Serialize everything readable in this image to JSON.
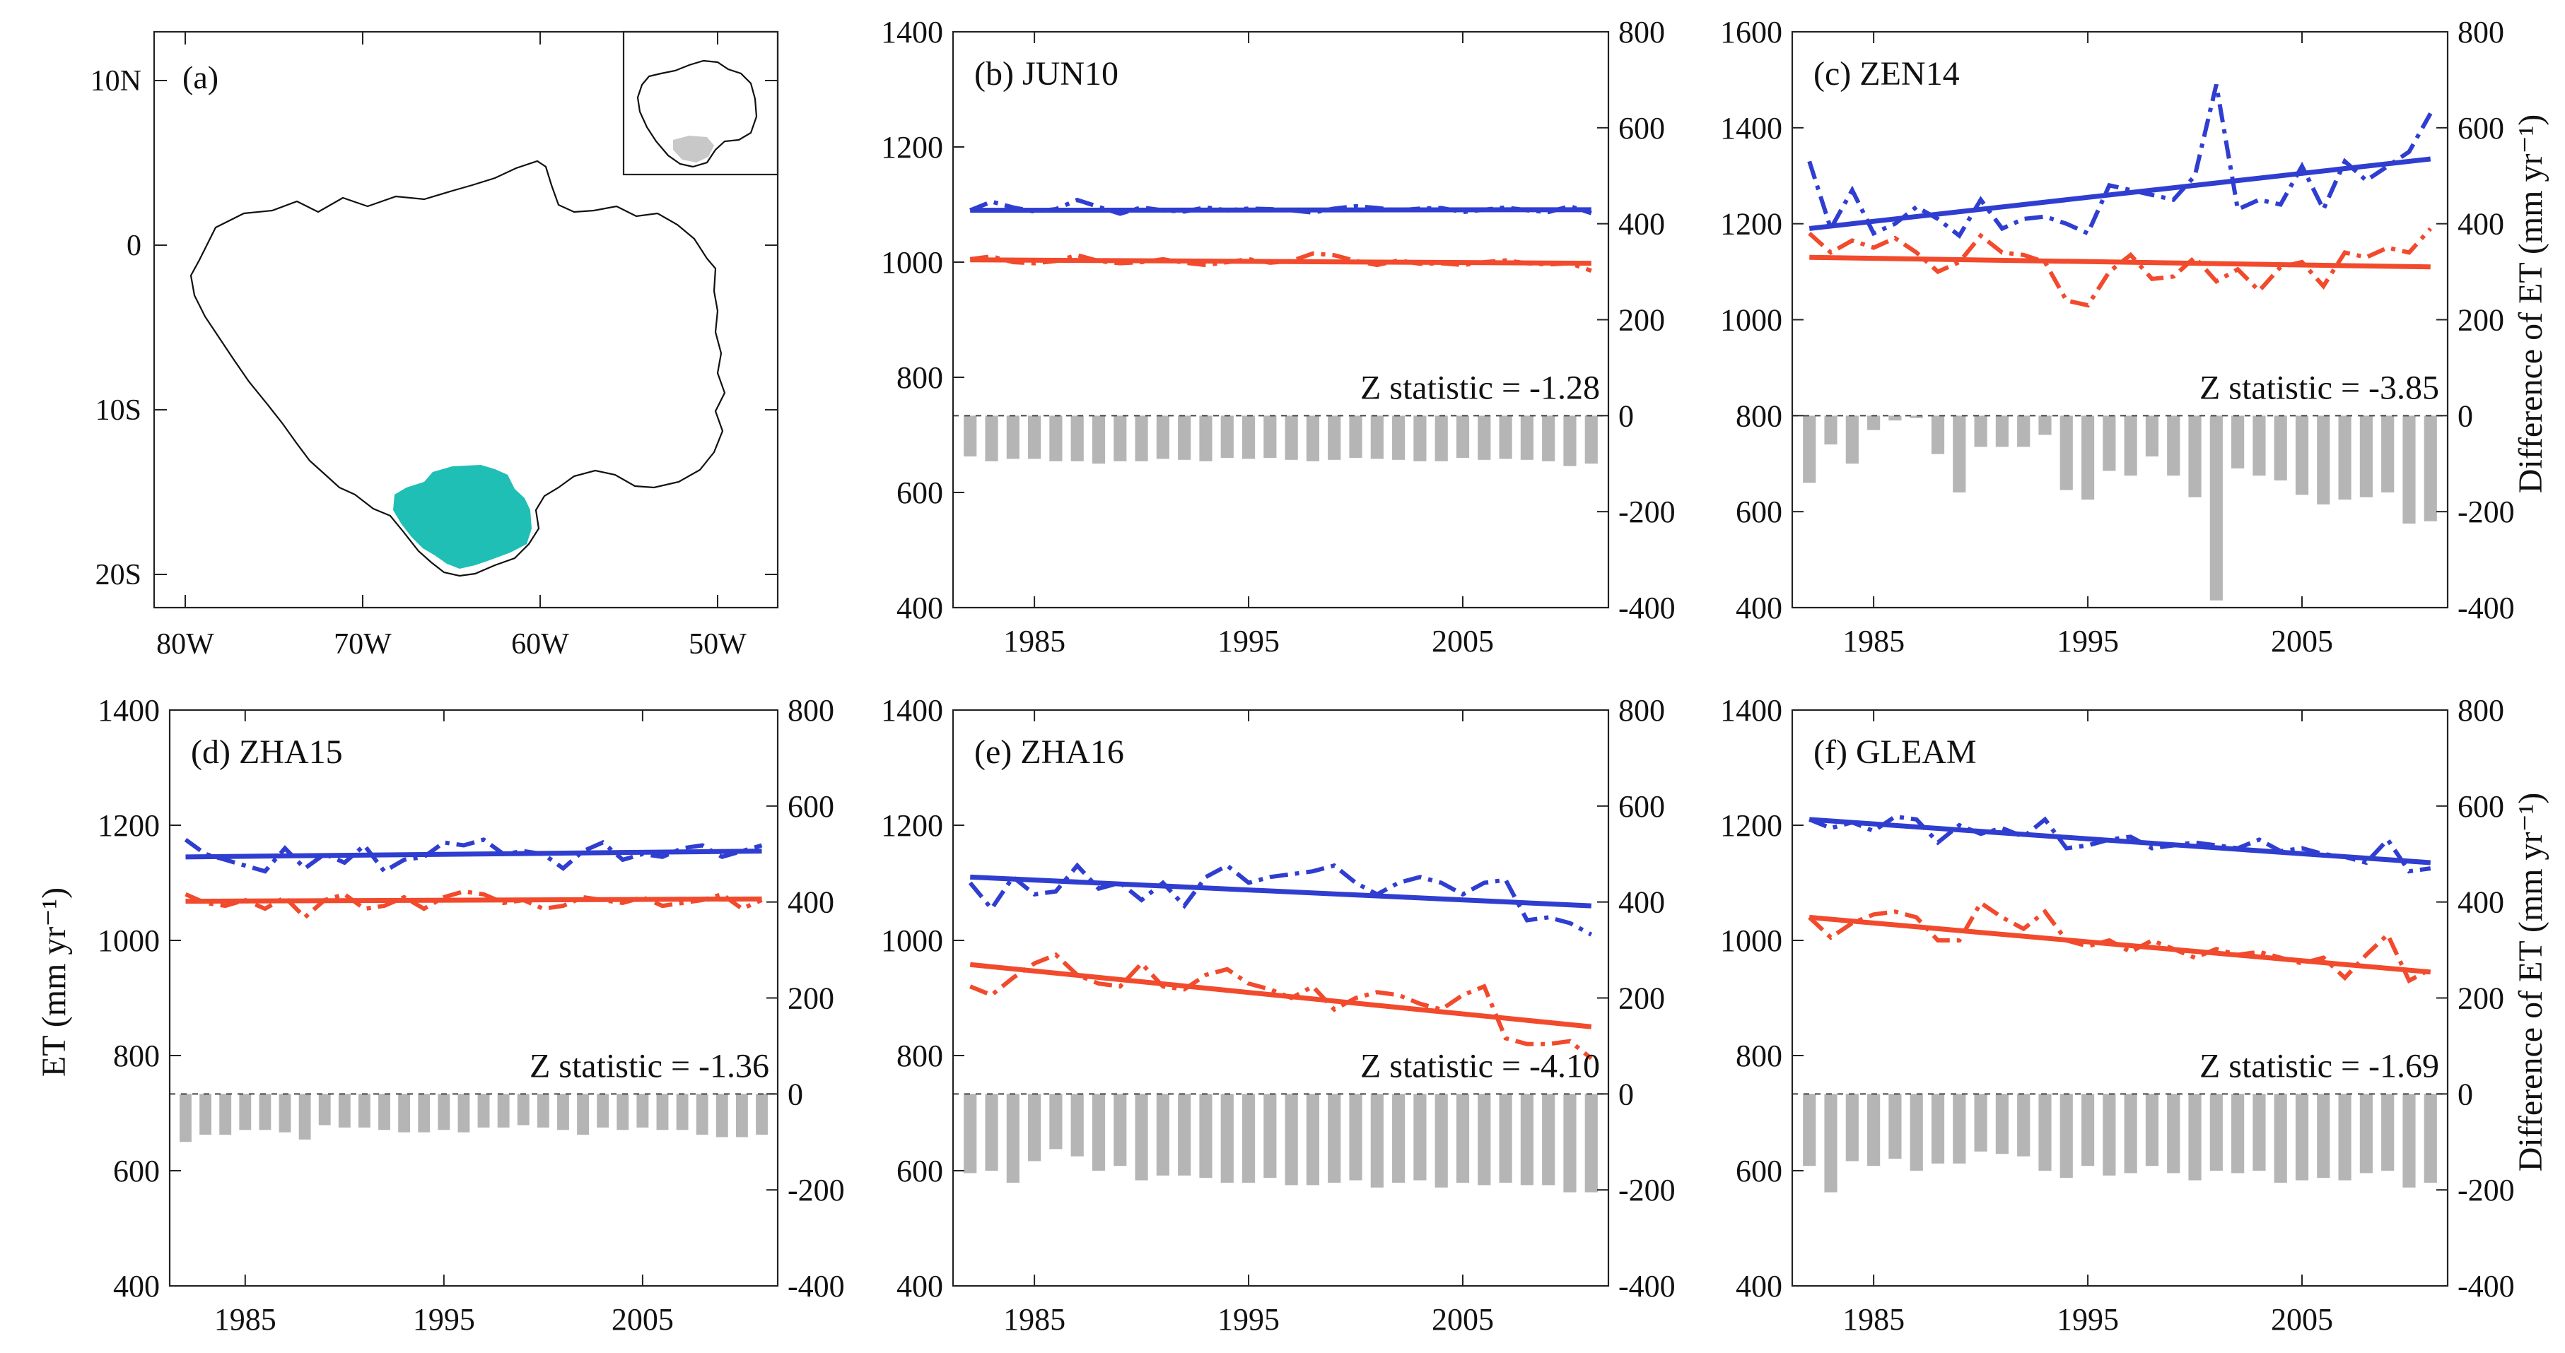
{
  "figure": {
    "map_panel": {
      "label": "(a)",
      "lat_ticks": [
        "10N",
        "0",
        "10S",
        "20S"
      ],
      "lon_ticks": [
        "80W",
        "70W",
        "60W",
        "50W"
      ]
    },
    "ylabel_left": "ET (mm yr⁻¹)",
    "ylabel_right": "Difference of ET (mm yr⁻¹)",
    "colors": {
      "series_blue": "#2f3ed0",
      "series_red": "#f24a2c",
      "diff_bars": "#b5b5b5",
      "region": "#1fbfb5"
    }
  },
  "chart_data": [
    {
      "type": "line",
      "title": "(b) JUN10",
      "z_text": "Z statistic = -1.28",
      "x": [
        1982,
        1983,
        1984,
        1985,
        1986,
        1987,
        1988,
        1989,
        1990,
        1991,
        1992,
        1993,
        1994,
        1995,
        1996,
        1997,
        1998,
        1999,
        2000,
        2001,
        2002,
        2003,
        2004,
        2005,
        2006,
        2007,
        2008,
        2009,
        2010,
        2011
      ],
      "x_ticks": [
        1985,
        1995,
        2005
      ],
      "ylim": [
        400,
        1400
      ],
      "y_ticks": [
        400,
        600,
        800,
        1000,
        1200,
        1400
      ],
      "y2lim": [
        -400,
        800
      ],
      "y2_ticks": [
        -400,
        -200,
        0,
        200,
        400,
        600,
        800
      ],
      "series": [
        {
          "name": "blue",
          "values": [
            1090,
            1105,
            1095,
            1088,
            1092,
            1108,
            1096,
            1084,
            1095,
            1090,
            1088,
            1095,
            1090,
            1093,
            1092,
            1090,
            1086,
            1093,
            1097,
            1094,
            1090,
            1093,
            1094,
            1087,
            1091,
            1095,
            1090,
            1087,
            1097,
            1085
          ],
          "trend": [
            1090,
            1091
          ]
        },
        {
          "name": "red",
          "values": [
            1005,
            1010,
            1000,
            998,
            1002,
            1012,
            1002,
            998,
            1000,
            1005,
            999,
            995,
            1000,
            1005,
            999,
            1002,
            1015,
            1012,
            1002,
            995,
            1003,
            997,
            998,
            995,
            1000,
            1003,
            998,
            996,
            998,
            985
          ],
          "trend": [
            1004,
            998
          ]
        }
      ],
      "diff": [
        -85,
        -95,
        -90,
        -90,
        -95,
        -95,
        -100,
        -95,
        -95,
        -90,
        -92,
        -95,
        -88,
        -90,
        -88,
        -92,
        -95,
        -92,
        -88,
        -90,
        -92,
        -95,
        -95,
        -88,
        -92,
        -90,
        -92,
        -95,
        -105,
        -100
      ]
    },
    {
      "type": "line",
      "title": "(c) ZEN14",
      "z_text": "Z statistic = -3.85",
      "x": [
        1982,
        1983,
        1984,
        1985,
        1986,
        1987,
        1988,
        1989,
        1990,
        1991,
        1992,
        1993,
        1994,
        1995,
        1996,
        1997,
        1998,
        1999,
        2000,
        2001,
        2002,
        2003,
        2004,
        2005,
        2006,
        2007,
        2008,
        2009,
        2010,
        2011
      ],
      "x_ticks": [
        1985,
        1995,
        2005
      ],
      "ylim": [
        400,
        1600
      ],
      "y_ticks": [
        400,
        600,
        800,
        1000,
        1200,
        1400,
        1600
      ],
      "y2lim": [
        -400,
        800
      ],
      "y2_ticks": [
        -400,
        -200,
        0,
        200,
        400,
        600,
        800
      ],
      "series": [
        {
          "name": "blue",
          "values": [
            1330,
            1190,
            1270,
            1180,
            1200,
            1235,
            1210,
            1175,
            1250,
            1190,
            1210,
            1215,
            1200,
            1180,
            1280,
            1270,
            1260,
            1250,
            1300,
            1490,
            1230,
            1250,
            1240,
            1320,
            1230,
            1330,
            1290,
            1320,
            1350,
            1430
          ],
          "trend": [
            1190,
            1335
          ]
        },
        {
          "name": "red",
          "values": [
            1180,
            1140,
            1165,
            1150,
            1170,
            1140,
            1100,
            1120,
            1175,
            1140,
            1135,
            1120,
            1040,
            1030,
            1100,
            1135,
            1085,
            1090,
            1130,
            1080,
            1105,
            1060,
            1110,
            1120,
            1070,
            1140,
            1130,
            1150,
            1140,
            1190
          ],
          "trend": [
            1130,
            1110
          ]
        }
      ],
      "diff": [
        -140,
        -60,
        -100,
        -30,
        -10,
        -5,
        -80,
        -160,
        -65,
        -65,
        -65,
        -40,
        -155,
        -175,
        -115,
        -125,
        -85,
        -125,
        -170,
        -385,
        -110,
        -125,
        -135,
        -165,
        -185,
        -175,
        -170,
        -160,
        -225,
        -220
      ]
    },
    {
      "type": "line",
      "title": "(d) ZHA15",
      "z_text": "Z statistic = -1.36",
      "x": [
        1982,
        1983,
        1984,
        1985,
        1986,
        1987,
        1988,
        1989,
        1990,
        1991,
        1992,
        1993,
        1994,
        1995,
        1996,
        1997,
        1998,
        1999,
        2000,
        2001,
        2002,
        2003,
        2004,
        2005,
        2006,
        2007,
        2008,
        2009,
        2010,
        2011
      ],
      "x_ticks": [
        1985,
        1995,
        2005
      ],
      "ylim": [
        400,
        1400
      ],
      "y_ticks": [
        400,
        600,
        800,
        1000,
        1200,
        1400
      ],
      "y2lim": [
        -400,
        800
      ],
      "y2_ticks": [
        -400,
        -200,
        0,
        200,
        400,
        600,
        800
      ],
      "series": [
        {
          "name": "blue",
          "values": [
            1175,
            1150,
            1140,
            1130,
            1120,
            1160,
            1125,
            1150,
            1135,
            1165,
            1120,
            1140,
            1145,
            1170,
            1165,
            1175,
            1150,
            1155,
            1150,
            1125,
            1155,
            1170,
            1140,
            1150,
            1145,
            1160,
            1165,
            1145,
            1155,
            1165
          ],
          "trend": [
            1145,
            1155
          ]
        },
        {
          "name": "red",
          "values": [
            1080,
            1065,
            1060,
            1070,
            1055,
            1075,
            1040,
            1070,
            1080,
            1055,
            1060,
            1075,
            1055,
            1075,
            1085,
            1080,
            1065,
            1070,
            1055,
            1060,
            1075,
            1070,
            1065,
            1075,
            1060,
            1065,
            1070,
            1080,
            1055,
            1070
          ],
          "trend": [
            1068,
            1072
          ]
        }
      ],
      "diff": [
        -100,
        -85,
        -85,
        -75,
        -75,
        -80,
        -95,
        -65,
        -70,
        -70,
        -75,
        -80,
        -80,
        -75,
        -80,
        -70,
        -70,
        -65,
        -70,
        -75,
        -85,
        -70,
        -75,
        -70,
        -75,
        -75,
        -85,
        -90,
        -90,
        -85
      ]
    },
    {
      "type": "line",
      "title": "(e) ZHA16",
      "z_text": "Z statistic = -4.10",
      "x": [
        1982,
        1983,
        1984,
        1985,
        1986,
        1987,
        1988,
        1989,
        1990,
        1991,
        1992,
        1993,
        1994,
        1995,
        1996,
        1997,
        1998,
        1999,
        2000,
        2001,
        2002,
        2003,
        2004,
        2005,
        2006,
        2007,
        2008,
        2009,
        2010,
        2011
      ],
      "x_ticks": [
        1985,
        1995,
        2005
      ],
      "ylim": [
        400,
        1400
      ],
      "y_ticks": [
        400,
        600,
        800,
        1000,
        1200,
        1400
      ],
      "y2lim": [
        -400,
        800
      ],
      "y2_ticks": [
        -400,
        -200,
        0,
        200,
        400,
        600,
        800
      ],
      "series": [
        {
          "name": "blue",
          "values": [
            1100,
            1055,
            1110,
            1080,
            1085,
            1130,
            1090,
            1100,
            1070,
            1100,
            1060,
            1110,
            1130,
            1100,
            1110,
            1115,
            1120,
            1130,
            1100,
            1080,
            1100,
            1110,
            1100,
            1080,
            1100,
            1105,
            1035,
            1040,
            1030,
            1010
          ],
          "trend": [
            1110,
            1060
          ]
        },
        {
          "name": "red",
          "values": [
            920,
            905,
            935,
            960,
            975,
            940,
            925,
            920,
            960,
            920,
            915,
            940,
            950,
            925,
            915,
            900,
            920,
            880,
            900,
            910,
            905,
            890,
            880,
            905,
            920,
            830,
            820,
            820,
            825,
            795
          ],
          "trend": [
            958,
            850
          ]
        }
      ],
      "diff": [
        -165,
        -160,
        -185,
        -140,
        -115,
        -130,
        -160,
        -150,
        -180,
        -170,
        -170,
        -175,
        -185,
        -185,
        -175,
        -190,
        -190,
        -185,
        -180,
        -195,
        -185,
        -180,
        -195,
        -185,
        -190,
        -185,
        -190,
        -190,
        -205,
        -205
      ]
    },
    {
      "type": "line",
      "title": "(f) GLEAM",
      "z_text": "Z statistic = -1.69",
      "x": [
        1982,
        1983,
        1984,
        1985,
        1986,
        1987,
        1988,
        1989,
        1990,
        1991,
        1992,
        1993,
        1994,
        1995,
        1996,
        1997,
        1998,
        1999,
        2000,
        2001,
        2002,
        2003,
        2004,
        2005,
        2006,
        2007,
        2008,
        2009,
        2010,
        2011
      ],
      "x_ticks": [
        1985,
        1995,
        2005
      ],
      "ylim": [
        400,
        1400
      ],
      "y_ticks": [
        400,
        600,
        800,
        1000,
        1200,
        1400
      ],
      "y2lim": [
        -400,
        800
      ],
      "y2_ticks": [
        -400,
        -200,
        0,
        200,
        400,
        600,
        800
      ],
      "series": [
        {
          "name": "blue",
          "values": [
            1210,
            1195,
            1205,
            1190,
            1215,
            1210,
            1170,
            1200,
            1185,
            1195,
            1180,
            1210,
            1160,
            1165,
            1175,
            1180,
            1160,
            1165,
            1170,
            1165,
            1160,
            1175,
            1155,
            1160,
            1150,
            1145,
            1135,
            1175,
            1120,
            1125
          ],
          "trend": [
            1210,
            1135
          ]
        },
        {
          "name": "red",
          "values": [
            1040,
            1005,
            1030,
            1045,
            1050,
            1040,
            1000,
            1000,
            1065,
            1040,
            1020,
            1050,
            1000,
            990,
            1000,
            980,
            1000,
            985,
            970,
            985,
            975,
            980,
            970,
            960,
            970,
            935,
            975,
            1010,
            930,
            950
          ],
          "trend": [
            1040,
            945
          ]
        }
      ],
      "diff": [
        -150,
        -205,
        -140,
        -150,
        -135,
        -160,
        -145,
        -145,
        -120,
        -125,
        -130,
        -160,
        -175,
        -150,
        -170,
        -165,
        -150,
        -165,
        -180,
        -160,
        -165,
        -160,
        -185,
        -180,
        -175,
        -180,
        -165,
        -160,
        -195,
        -185
      ]
    }
  ]
}
